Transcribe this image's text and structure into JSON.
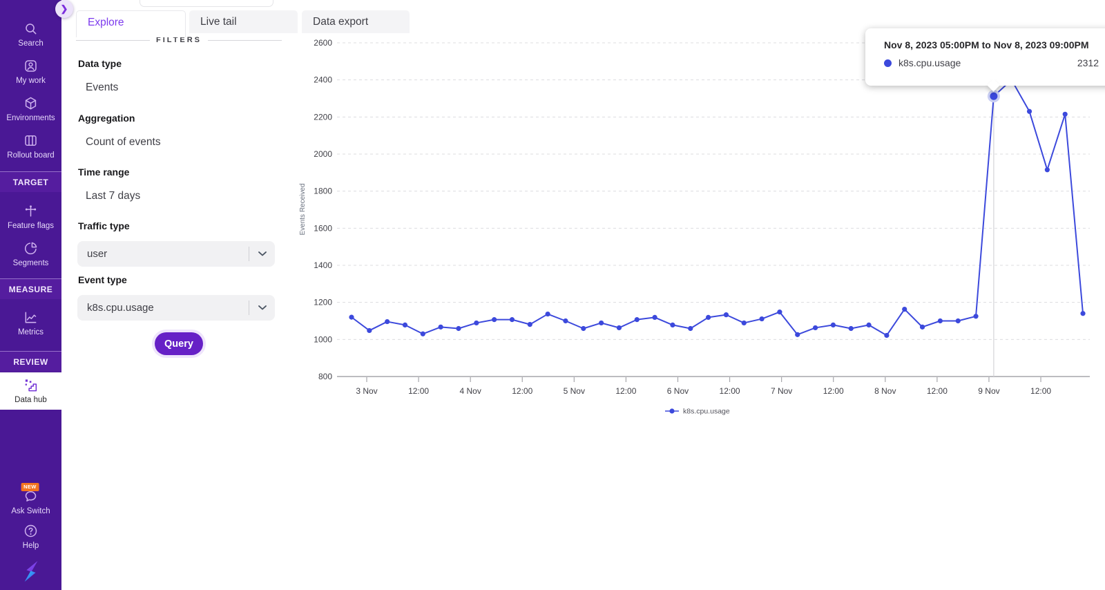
{
  "sidebar": {
    "entries": [
      {
        "type": "item",
        "label": "Search",
        "icon": "search"
      },
      {
        "type": "item",
        "label": "My work",
        "icon": "my-work"
      },
      {
        "type": "item",
        "label": "Environments",
        "icon": "environments"
      },
      {
        "type": "item",
        "label": "Rollout board",
        "icon": "rollout-board"
      },
      {
        "type": "section",
        "label": "TARGET"
      },
      {
        "type": "item",
        "label": "Feature flags",
        "icon": "feature-flags"
      },
      {
        "type": "item",
        "label": "Segments",
        "icon": "segments"
      },
      {
        "type": "section",
        "label": "MEASURE"
      },
      {
        "type": "item",
        "label": "Metrics",
        "icon": "metrics"
      },
      {
        "type": "section",
        "label": "REVIEW"
      },
      {
        "type": "item",
        "label": "Data hub",
        "icon": "data-hub",
        "active": true
      },
      {
        "type": "item",
        "label": "Ask Switch",
        "icon": "ask-switch",
        "badge": "NEW"
      },
      {
        "type": "item",
        "label": "Help",
        "icon": "help"
      }
    ]
  },
  "tabs": [
    {
      "label": "Explore",
      "active": true
    },
    {
      "label": "Live tail",
      "active": false
    },
    {
      "label": "Data export",
      "active": false
    }
  ],
  "filters": {
    "header": "FILTERS",
    "fields": [
      {
        "label": "Data type",
        "value": "Events",
        "type": "text"
      },
      {
        "label": "Aggregation",
        "value": "Count of events",
        "type": "text"
      },
      {
        "label": "Time range",
        "value": "Last 7 days",
        "type": "text"
      },
      {
        "label": "Traffic type",
        "value": "user",
        "type": "select"
      },
      {
        "label": "Event type",
        "value": "k8s.cpu.usage",
        "type": "select"
      }
    ],
    "query_label": "Query"
  },
  "tooltip": {
    "title": "Nov 8, 2023 05:00PM to Nov 8, 2023 09:00PM",
    "series": "k8s.cpu.usage",
    "value": "2312"
  },
  "chart_data": {
    "type": "line",
    "title": "",
    "xlabel": "",
    "ylabel": "Events Received",
    "ylim": [
      800,
      2600
    ],
    "y_ticks": [
      800,
      1000,
      1200,
      1400,
      1600,
      1800,
      2000,
      2200,
      2400,
      2600
    ],
    "x_tick_labels": [
      "3 Nov",
      "12:00",
      "4 Nov",
      "12:00",
      "5 Nov",
      "12:00",
      "6 Nov",
      "12:00",
      "7 Nov",
      "12:00",
      "8 Nov",
      "12:00",
      "9 Nov",
      "12:00"
    ],
    "grid": "horizontal-dashed",
    "legend_position": "bottom",
    "series": [
      {
        "name": "k8s.cpu.usage",
        "color": "#3c49dc",
        "values": [
          1120,
          1048,
          1096,
          1078,
          1030,
          1067,
          1059,
          1089,
          1107,
          1107,
          1081,
          1137,
          1100,
          1059,
          1089,
          1063,
          1107,
          1119,
          1078,
          1059,
          1119,
          1133,
          1089,
          1111,
          1148,
          1026,
          1063,
          1078,
          1059,
          1078,
          1022,
          1163,
          1067,
          1100,
          1100,
          1125,
          2312,
          2400,
          2230,
          1915,
          2215,
          1140
        ]
      }
    ],
    "highlight": {
      "index": 36,
      "value": 2312,
      "range_label": "Nov 8, 2023 05:00PM to Nov 8, 2023 09:00PM"
    }
  },
  "colors": {
    "sidebar_bg": "#4a1895",
    "sidebar_section_bg": "#551d9f",
    "accent_purple": "#7c3aed",
    "query_button": "#6620c6",
    "series_line": "#3c49dc",
    "new_badge": "#f4741f"
  }
}
